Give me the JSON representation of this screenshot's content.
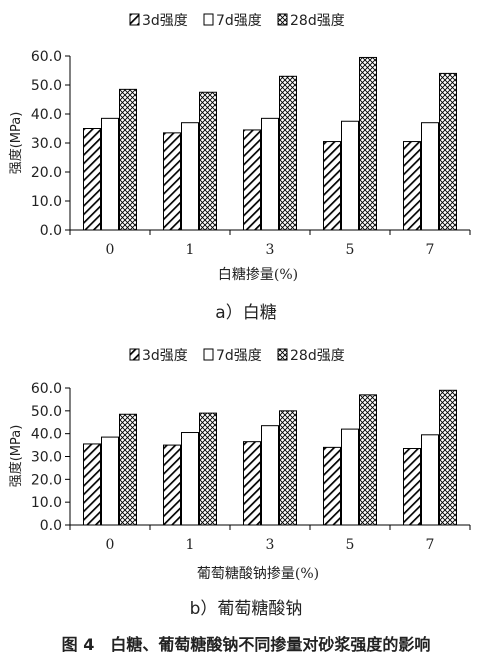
{
  "caption": "图 4　白糖、葡萄糖酸钠不同掺量对砂浆强度的影响",
  "legend_labels": [
    "3d强度",
    "7d强度",
    "28d强度"
  ],
  "chart_data": [
    {
      "type": "bar",
      "subtitle": "a）白糖",
      "xlabel": "白糖掺量(%)",
      "ylabel": "强度(MPa)",
      "ylim": [
        0,
        60
      ],
      "yticks": [
        "0.0",
        "10.0",
        "20.0",
        "30.0",
        "40.0",
        "50.0",
        "60.0"
      ],
      "categories": [
        "0",
        "1",
        "3",
        "5",
        "7"
      ],
      "series": [
        {
          "name": "3d强度",
          "values": [
            35.0,
            33.5,
            34.5,
            30.5,
            30.5
          ]
        },
        {
          "name": "7d强度",
          "values": [
            38.5,
            37.0,
            38.5,
            37.5,
            37.0
          ]
        },
        {
          "name": "28d强度",
          "values": [
            48.5,
            47.5,
            53.0,
            59.5,
            54.0
          ]
        }
      ],
      "legend_position": "top",
      "grid": false
    },
    {
      "type": "bar",
      "subtitle": "b）葡萄糖酸钠",
      "xlabel": "葡萄糖酸钠掺量(%)",
      "ylabel": "强度(MPa)",
      "ylim": [
        0,
        60
      ],
      "yticks": [
        "0.0",
        "10.0",
        "20.0",
        "30.0",
        "40.0",
        "50.0",
        "60.0"
      ],
      "categories": [
        "0",
        "1",
        "3",
        "5",
        "7"
      ],
      "series": [
        {
          "name": "3d强度",
          "values": [
            35.5,
            35.0,
            36.5,
            34.0,
            33.5
          ]
        },
        {
          "name": "7d强度",
          "values": [
            38.5,
            40.5,
            43.5,
            42.0,
            39.5
          ]
        },
        {
          "name": "28d强度",
          "values": [
            48.5,
            49.0,
            50.0,
            57.0,
            59.0
          ]
        }
      ],
      "legend_position": "top",
      "grid": false
    }
  ]
}
